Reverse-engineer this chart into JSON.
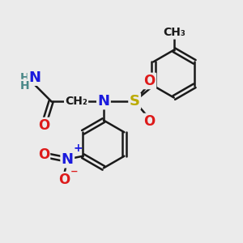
{
  "bg_color": "#ebebeb",
  "bond_color": "#1a1a1a",
  "bond_width": 1.8,
  "atom_colors": {
    "N": "#1a1add",
    "O": "#dd1a1a",
    "S": "#bbaa00",
    "C": "#1a1a1a",
    "H": "#4a8888"
  }
}
